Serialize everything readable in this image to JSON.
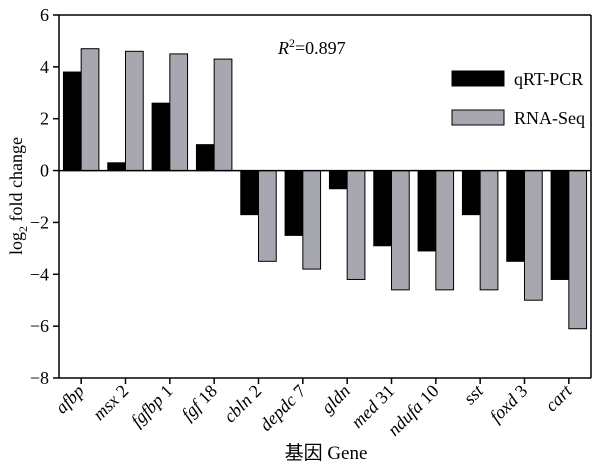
{
  "chart_data": {
    "type": "bar",
    "categories": [
      {
        "name": "afbp",
        "suffix": ""
      },
      {
        "name": "msx",
        "suffix": " 2"
      },
      {
        "name": "fgfbp",
        "suffix": " 1"
      },
      {
        "name": "fgf",
        "suffix": " 18"
      },
      {
        "name": "cbln",
        "suffix": " 2"
      },
      {
        "name": "depdc",
        "suffix": " 7"
      },
      {
        "name": "gldn",
        "suffix": ""
      },
      {
        "name": "med",
        "suffix": " 31"
      },
      {
        "name": "ndufa",
        "suffix": " 10"
      },
      {
        "name": "sst",
        "suffix": ""
      },
      {
        "name": "foxd",
        "suffix": " 3"
      },
      {
        "name": "cart",
        "suffix": ""
      }
    ],
    "series": [
      {
        "name": "qRT-PCR",
        "color": "#000000",
        "values": [
          3.8,
          0.3,
          2.6,
          1.0,
          -1.7,
          -2.5,
          -0.7,
          -2.9,
          -3.1,
          -1.7,
          -3.5,
          -4.2
        ]
      },
      {
        "name": "RNA-Seq",
        "color": "#a7a7af",
        "values": [
          4.7,
          4.6,
          4.5,
          4.3,
          -3.5,
          -3.8,
          -4.2,
          -4.6,
          -4.6,
          -4.6,
          -5.0,
          -6.1
        ]
      }
    ],
    "ylim": [
      -8,
      6
    ],
    "yticks": [
      "6",
      "4",
      "2",
      "0",
      "−2",
      "−4",
      "−6",
      "−8"
    ],
    "ytick_values": [
      6,
      4,
      2,
      0,
      -2,
      -4,
      -6,
      -8
    ],
    "ylabel": {
      "prefix": "log",
      "sub": "2",
      "rest": " fold change"
    },
    "xlabel": "基因 Gene",
    "annotation": {
      "r": "R",
      "sup": "2",
      "rest": "=0.897"
    },
    "legend_position": "top-right",
    "grid": false
  }
}
